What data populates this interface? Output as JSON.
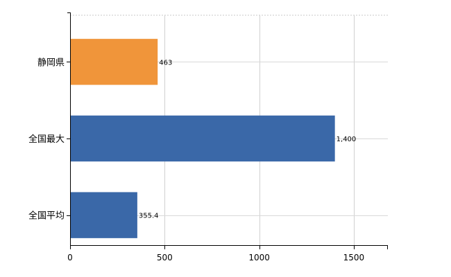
{
  "chart_data": {
    "type": "bar",
    "orientation": "horizontal",
    "categories": [
      "静岡県",
      "全国最大",
      "全国平均"
    ],
    "values": [
      463,
      1400,
      355.4
    ],
    "value_labels": [
      "463",
      "1,400",
      "355.4"
    ],
    "bar_colors": [
      "#f0953a",
      "#3a68a8",
      "#3a68a8"
    ],
    "xlim": [
      0,
      1680
    ],
    "xticks": [
      0,
      500,
      1000,
      1500
    ],
    "xtick_labels": [
      "0",
      "500",
      "1000",
      "1500"
    ],
    "grid": true,
    "title": "",
    "xlabel": "",
    "ylabel": ""
  }
}
